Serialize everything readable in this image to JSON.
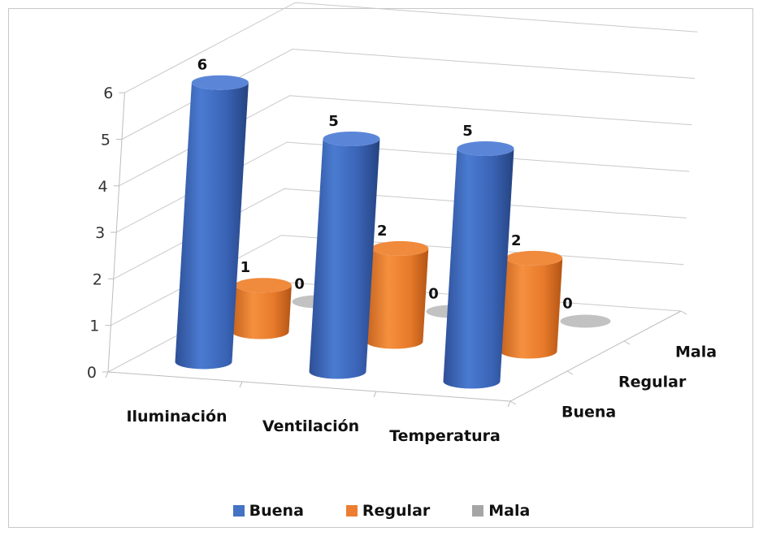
{
  "chart_data": {
    "type": "bar",
    "subtype": "3d-cylinder",
    "categories": [
      "Iluminación",
      "Ventilación",
      "Temperatura"
    ],
    "series": [
      {
        "name": "Buena",
        "values": [
          6,
          5,
          5
        ],
        "color": "#4472C4"
      },
      {
        "name": "Regular",
        "values": [
          1,
          2,
          2
        ],
        "color": "#ED7D31"
      },
      {
        "name": "Mala",
        "values": [
          0,
          0,
          0
        ],
        "color": "#A5A5A5"
      }
    ],
    "y_ticks": [
      "0",
      "1",
      "2",
      "3",
      "4",
      "5",
      "6"
    ],
    "ylim": [
      0,
      6
    ],
    "depth_labels": [
      "Buena",
      "Regular",
      "Mala"
    ],
    "grid": true,
    "legend_position": "bottom",
    "data_labels": true
  }
}
